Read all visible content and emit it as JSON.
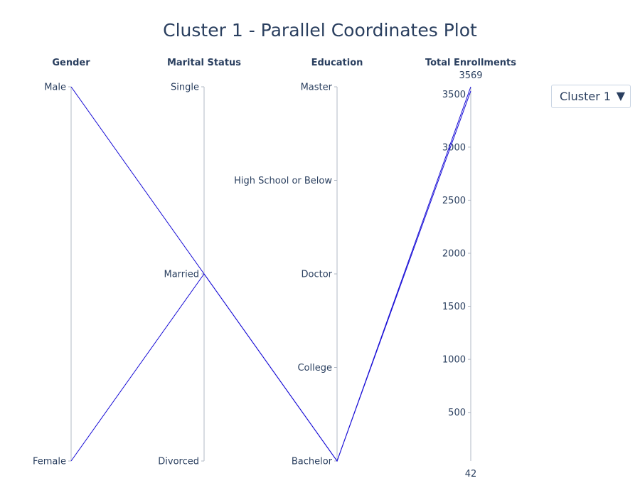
{
  "chart_data": {
    "type": "parallel_coordinates",
    "title": "Cluster 1 - Parallel Coordinates Plot",
    "line_color": "#1a0fd6",
    "axes": [
      {
        "label": "Gender",
        "kind": "categorical",
        "categories": [
          "Male",
          "Female"
        ]
      },
      {
        "label": "Marital Status",
        "kind": "categorical",
        "categories": [
          "Single",
          "Married",
          "Divorced"
        ]
      },
      {
        "label": "Education",
        "kind": "categorical",
        "categories": [
          "Master",
          "High School or Below",
          "Doctor",
          "College",
          "Bachelor"
        ]
      },
      {
        "label": "Total Enrollments",
        "kind": "numeric",
        "range": [
          42,
          3569
        ],
        "range_labels": [
          "3569",
          "42"
        ],
        "ticks": [
          500,
          1000,
          1500,
          2000,
          2500,
          3000,
          3500
        ],
        "tick_labels": [
          "500",
          "1000",
          "1500",
          "2000",
          "2500",
          "3000",
          "3500"
        ]
      }
    ],
    "lines": [
      {
        "values": [
          "Male",
          "Married",
          "Bachelor",
          3569
        ]
      },
      {
        "values": [
          "Female",
          "Married",
          "Bachelor",
          3530
        ]
      }
    ]
  },
  "dropdown": {
    "selected": "Cluster 1",
    "arrow": "▼"
  }
}
